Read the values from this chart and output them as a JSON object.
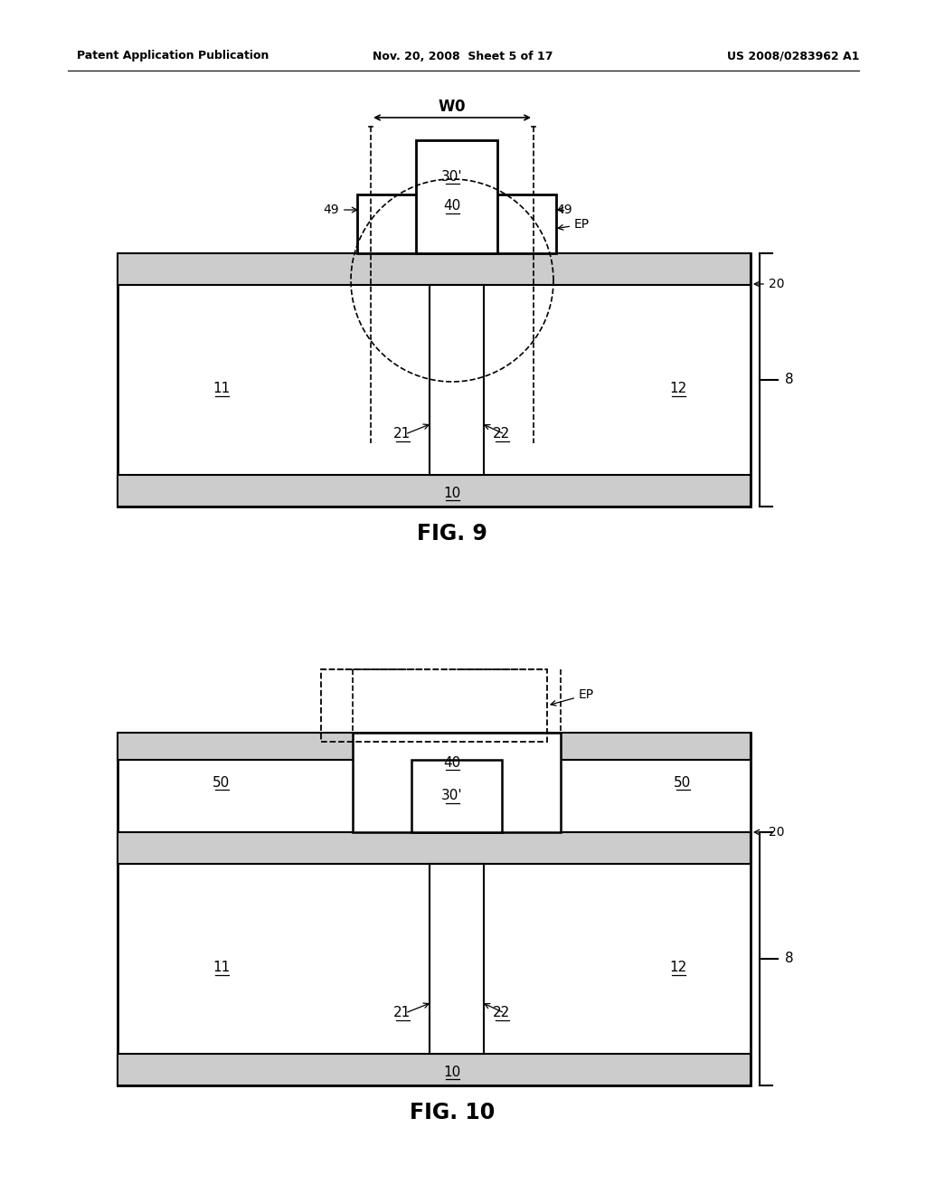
{
  "bg_color": "#ffffff",
  "line_color": "#000000",
  "header_text_left": "Patent Application Publication",
  "header_text_mid": "Nov. 20, 2008  Sheet 5 of 17",
  "header_text_right": "US 2008/0283962 A1",
  "fig9_caption": "FIG. 9",
  "fig10_caption": "FIG. 10"
}
